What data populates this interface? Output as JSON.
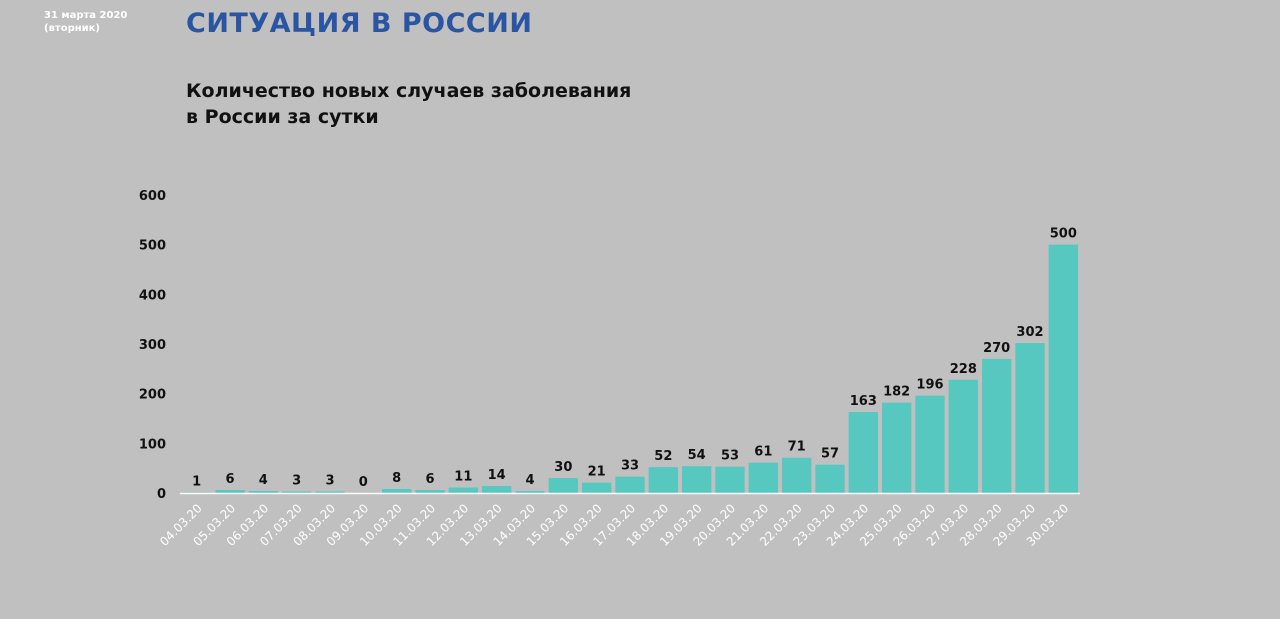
{
  "header": {
    "date": "31 марта 2020",
    "weekday": "(вторник)",
    "title": "СИТУАЦИЯ В РОССИИ"
  },
  "chart_data": {
    "type": "bar",
    "title_lines": [
      "Количество новых случаев заболевания",
      "в России за сутки"
    ],
    "categories": [
      "04.03.20",
      "05.03.20",
      "06.03.20",
      "07.03.20",
      "08.03.20",
      "09.03.20",
      "10.03.20",
      "11.03.20",
      "12.03.20",
      "13.03.20",
      "14.03.20",
      "15.03.20",
      "16.03.20",
      "17.03.20",
      "18.03.20",
      "19.03.20",
      "20.03.20",
      "21.03.20",
      "22.03.20",
      "23.03.20",
      "24.03.20",
      "25.03.20",
      "26.03.20",
      "27.03.20",
      "28.03.20",
      "29.03.20",
      "30.03.20"
    ],
    "values": [
      1,
      6,
      4,
      3,
      3,
      0,
      8,
      6,
      11,
      14,
      4,
      30,
      21,
      33,
      52,
      54,
      53,
      61,
      71,
      57,
      163,
      182,
      196,
      228,
      270,
      302,
      500
    ],
    "ylim": [
      0,
      600
    ],
    "yticks": [
      0,
      100,
      200,
      300,
      400,
      500,
      600
    ],
    "bar_color": "#56c8bf",
    "grid": false,
    "legend": "none",
    "data_labels": true
  }
}
